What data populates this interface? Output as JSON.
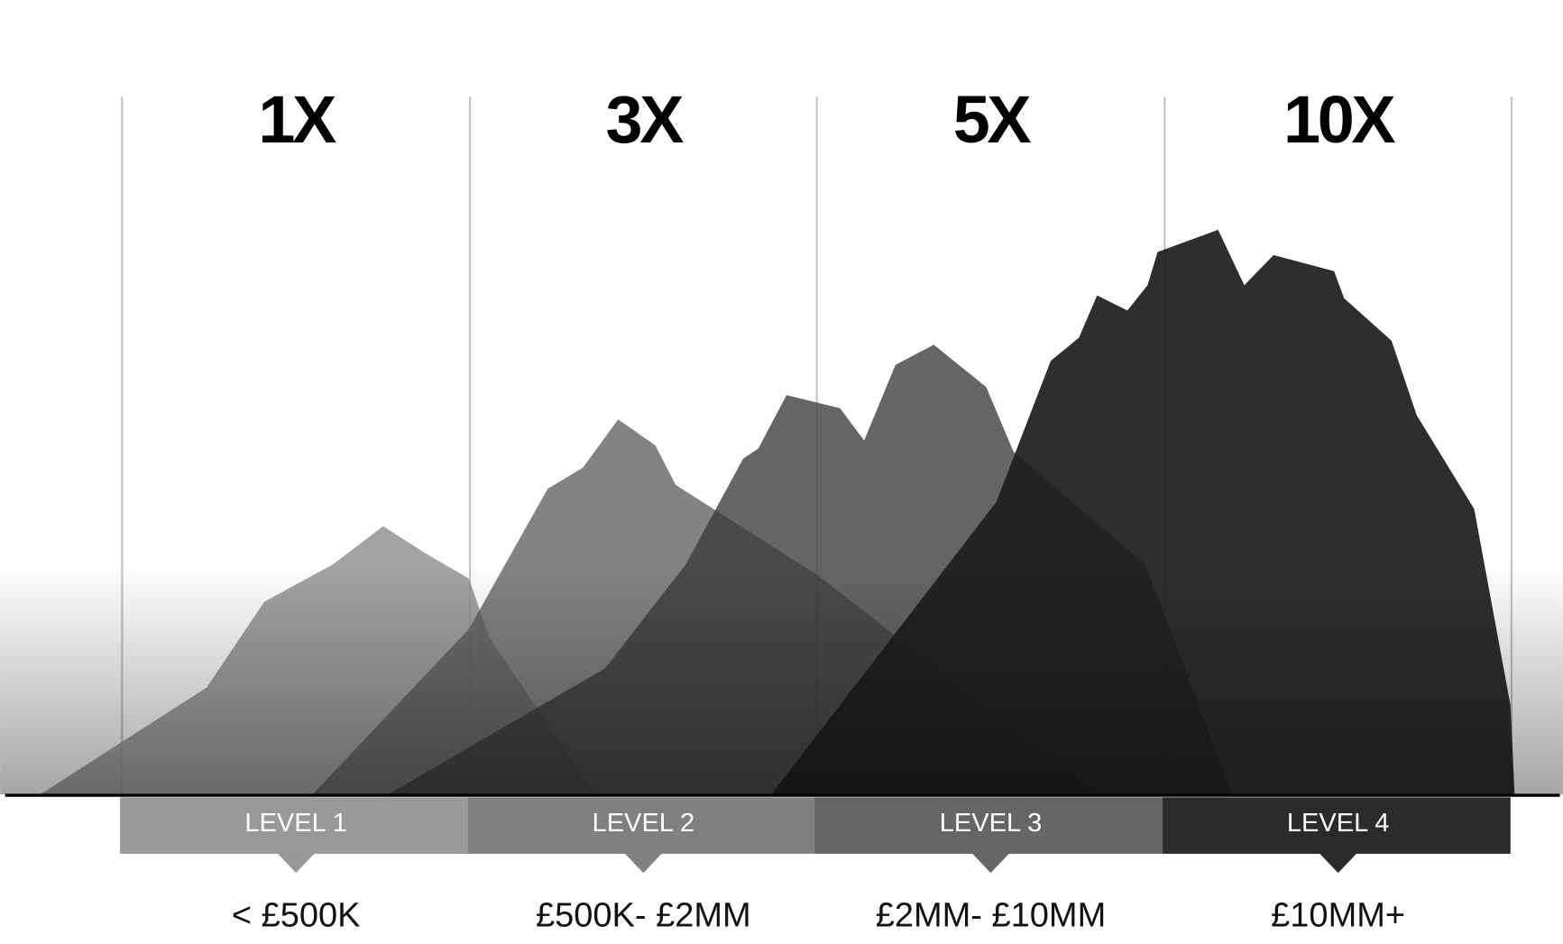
{
  "columns": [
    {
      "multiplier": "1X",
      "level": "LEVEL 1",
      "range": "< £500K"
    },
    {
      "multiplier": "3X",
      "level": "LEVEL 2",
      "range": "£500K- £2MM"
    },
    {
      "multiplier": "5X",
      "level": "LEVEL 3",
      "range": "£2MM- £10MM"
    },
    {
      "multiplier": "10X",
      "level": "LEVEL 4",
      "range": "£10MM+"
    }
  ]
}
